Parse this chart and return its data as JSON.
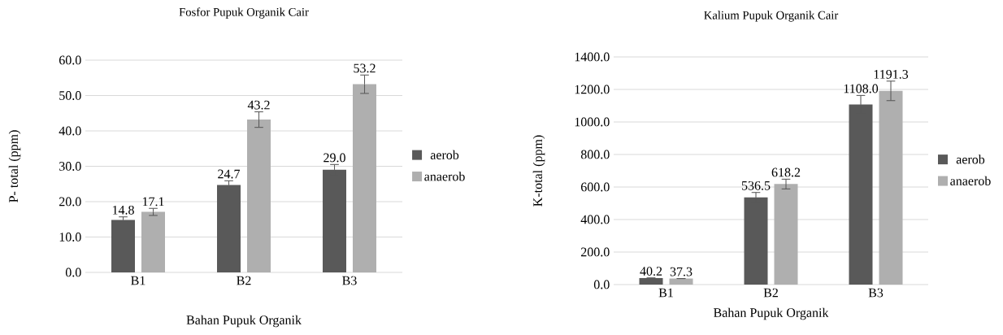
{
  "chart_data": [
    {
      "type": "bar",
      "title": "Fosfor  Pupuk Organik Cair",
      "xlabel": "Bahan Pupuk Organik",
      "ylabel": "P- total  (ppm)",
      "categories": [
        "B1",
        "B2",
        "B3"
      ],
      "series": [
        {
          "name": "aerob",
          "color": "#595959",
          "values": [
            14.8,
            24.7,
            29.0
          ],
          "errors": [
            0.9,
            1.2,
            1.5
          ],
          "value_labels": [
            "14.8",
            "24.7",
            "29.0"
          ]
        },
        {
          "name": "anaerob",
          "color": "#afafaf",
          "values": [
            17.1,
            43.2,
            53.2
          ],
          "errors": [
            1.0,
            2.2,
            2.6
          ],
          "value_labels": [
            "17.1",
            "43.2",
            "53.2"
          ]
        }
      ],
      "ylim": [
        0,
        60
      ],
      "yticks": [
        {
          "value": 0,
          "label": "0.0"
        },
        {
          "value": 10,
          "label": "10.0"
        },
        {
          "value": 20,
          "label": "20.0"
        },
        {
          "value": 30,
          "label": "30.0"
        },
        {
          "value": 40,
          "label": "40.0"
        },
        {
          "value": 50,
          "label": "50.0"
        },
        {
          "value": 60,
          "label": "60.0"
        }
      ],
      "grid": "y",
      "legend": "right"
    },
    {
      "type": "bar",
      "title": "Kalium Pupuk Organik Cair",
      "xlabel": "Bahan Pupuk Organik",
      "ylabel": "K-total  (ppm)",
      "categories": [
        "B1",
        "B2",
        "B3"
      ],
      "series": [
        {
          "name": "aerob",
          "color": "#595959",
          "values": [
            40.2,
            536.5,
            1108.0
          ],
          "errors": [
            null,
            30,
            55
          ],
          "value_labels": [
            "40.2",
            "536.5",
            "1108.0"
          ]
        },
        {
          "name": "anaerob",
          "color": "#afafaf",
          "values": [
            37.3,
            618.2,
            1191.3
          ],
          "errors": [
            null,
            30,
            60
          ],
          "value_labels": [
            "37.3",
            "618.2",
            "1191.3"
          ]
        }
      ],
      "ylim": [
        0,
        1400
      ],
      "yticks": [
        {
          "value": 0,
          "label": "0.0"
        },
        {
          "value": 200,
          "label": "200.0"
        },
        {
          "value": 400,
          "label": "400.0"
        },
        {
          "value": 600,
          "label": "600.0"
        },
        {
          "value": 800,
          "label": "800.0"
        },
        {
          "value": 1000,
          "label": "1000.0"
        },
        {
          "value": 1200,
          "label": "1200.0"
        },
        {
          "value": 1400,
          "label": "1400.0"
        }
      ],
      "grid": "y",
      "legend": "right"
    }
  ]
}
